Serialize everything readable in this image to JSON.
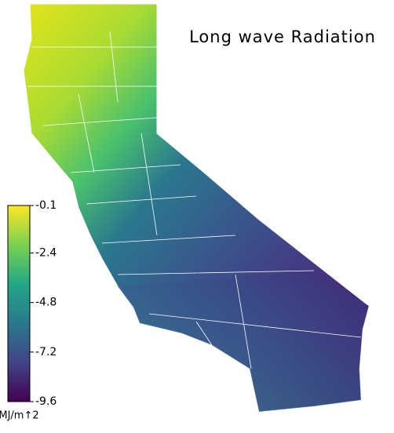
{
  "title": "Long wave Radiation",
  "colorbar": {
    "lim": [
      -9.6,
      -0.1
    ],
    "ticks": [
      -0.1,
      -2.4,
      -4.8,
      -7.2,
      -9.6
    ],
    "unit": "MJ/m↑2",
    "colors": [
      "#440154",
      "#414487",
      "#2a788e",
      "#22a884",
      "#7ad151",
      "#fde725"
    ]
  }
}
